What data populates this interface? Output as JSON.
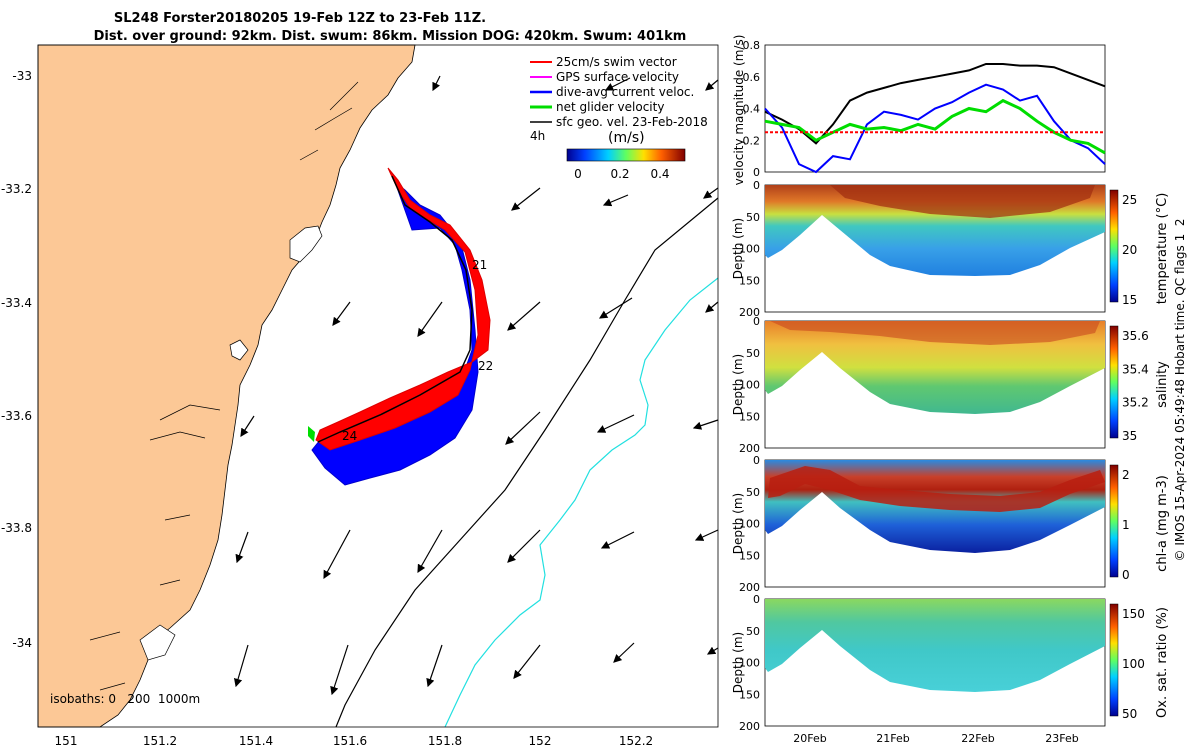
{
  "title_line1": "SL248 Forster20180205 19-Feb 12Z to 23-Feb 11Z.",
  "title_line2": "Dist. over ground: 92km. Dist. swum: 86km. Mission DOG: 420km. Swum: 401km",
  "side_note": "© IMOS 15-Apr-2024 05:49:48 Hobart time. QC flags 1  2",
  "map": {
    "legend": [
      {
        "label": "25cm/s swim vector",
        "color": "#ff0000"
      },
      {
        "label": "GPS surface velocity",
        "color": "#ff00ff"
      },
      {
        "label": "dive-avg current veloc.",
        "color": "#0000ff"
      },
      {
        "label": "net glider velocity",
        "color": "#00dd00"
      },
      {
        "label": "sfc geo. vel. 23-Feb-2018",
        "color": "#000000"
      }
    ],
    "duration_label": "4h",
    "colorbar_title": "(m/s)",
    "colorbar_ticks": [
      "0",
      "0.2",
      "0.4"
    ],
    "isobaths_label": "isobaths: 0   200  1000m",
    "day_labels": [
      "21",
      "22",
      "24"
    ]
  },
  "chart_data": [
    {
      "type": "scatter",
      "title": "",
      "xlabel": "",
      "ylabel": "",
      "xlim": [
        150.95,
        152.38
      ],
      "ylim": [
        -34.13,
        -32.9
      ],
      "x_ticks": [
        "151",
        "151.2",
        "151.4",
        "151.6",
        "151.8",
        "152",
        "152.2"
      ],
      "y_ticks": [
        "-33",
        "-33.2",
        "-33.4",
        "-33.6",
        "-33.8",
        "-34"
      ],
      "glider_track": [
        [
          151.7,
          -33.19
        ],
        [
          151.74,
          -33.26
        ],
        [
          151.78,
          -33.3
        ],
        [
          151.84,
          -33.37
        ],
        [
          151.87,
          -33.44
        ],
        [
          151.85,
          -33.52
        ],
        [
          151.78,
          -33.58
        ],
        [
          151.68,
          -33.63
        ],
        [
          151.58,
          -33.66
        ],
        [
          151.53,
          -33.63
        ]
      ]
    },
    {
      "type": "line",
      "ylabel": "velocity magnitude (m/s)",
      "ylim": [
        0,
        0.8
      ],
      "yticks": [
        "0",
        "0.2",
        "0.4",
        "0.6",
        "0.8"
      ],
      "x": [
        19.5,
        19.7,
        19.9,
        20.1,
        20.3,
        20.5,
        20.7,
        20.9,
        21.1,
        21.3,
        21.5,
        21.7,
        21.9,
        22.1,
        22.3,
        22.5,
        22.7,
        22.9,
        23.1,
        23.3,
        23.5
      ],
      "series": [
        {
          "color": "#000000",
          "values": [
            0.38,
            0.33,
            0.27,
            0.18,
            0.3,
            0.45,
            0.5,
            0.53,
            0.56,
            0.58,
            0.6,
            0.62,
            0.64,
            0.68,
            0.68,
            0.67,
            0.67,
            0.66,
            0.62,
            0.58,
            0.54
          ]
        },
        {
          "color": "#0000ff",
          "values": [
            0.4,
            0.28,
            0.05,
            0.0,
            0.1,
            0.08,
            0.3,
            0.38,
            0.36,
            0.33,
            0.4,
            0.44,
            0.5,
            0.55,
            0.52,
            0.45,
            0.48,
            0.32,
            0.2,
            0.15,
            0.05
          ]
        },
        {
          "color": "#00dd00",
          "values": [
            0.32,
            0.3,
            0.28,
            0.2,
            0.25,
            0.3,
            0.27,
            0.28,
            0.26,
            0.3,
            0.27,
            0.35,
            0.4,
            0.38,
            0.45,
            0.4,
            0.32,
            0.25,
            0.2,
            0.18,
            0.12
          ]
        },
        {
          "color": "#ff0000",
          "values": [
            0.25,
            0.25,
            0.25,
            0.25,
            0.25,
            0.25,
            0.25,
            0.25,
            0.25,
            0.25,
            0.25,
            0.25,
            0.25,
            0.25,
            0.25,
            0.25,
            0.25,
            0.25,
            0.25,
            0.25,
            0.25
          ]
        }
      ]
    },
    {
      "type": "heatmap",
      "ylabel": "Depth (m)",
      "ylim": [
        0,
        200
      ],
      "yticks": [
        "0",
        "50",
        "100",
        "150",
        "200"
      ],
      "colorbar_label": "temperature (°C)",
      "colorbar_ticks": [
        "25",
        "20",
        "15"
      ],
      "colormap": [
        "#0a1aa0",
        "#1e78e6",
        "#38c8c8",
        "#9ae06a",
        "#f0e040",
        "#e07820",
        "#9a2410"
      ]
    },
    {
      "type": "heatmap",
      "ylabel": "Depth (m)",
      "ylim": [
        0,
        200
      ],
      "yticks": [
        "0",
        "50",
        "100",
        "150",
        "200"
      ],
      "colorbar_label": "salinity",
      "colorbar_ticks": [
        "35.6",
        "35.4",
        "35.2",
        "35"
      ],
      "colormap": [
        "#1a2ab0",
        "#2a8ae0",
        "#40c8a0",
        "#a0d840",
        "#f0d030",
        "#e88020",
        "#b03018"
      ]
    },
    {
      "type": "heatmap",
      "ylabel": "Depth (m)",
      "ylim": [
        0,
        200
      ],
      "yticks": [
        "0",
        "50",
        "100",
        "150",
        "200"
      ],
      "colorbar_label": "chl-a (mg m-3)",
      "colorbar_ticks": [
        "2",
        "1",
        "0"
      ],
      "colormap": [
        "#0a1a9a",
        "#1e6ad8",
        "#36b8c8",
        "#8ad86a",
        "#f0d040",
        "#e06a20",
        "#a01010"
      ]
    },
    {
      "type": "heatmap",
      "ylabel": "Depth (m)",
      "ylim": [
        0,
        200
      ],
      "yticks": [
        "0",
        "50",
        "100",
        "150",
        "200"
      ],
      "colorbar_label": "Ox. sat. ratio (%)",
      "colorbar_ticks": [
        "150",
        "100",
        "50"
      ],
      "colormap": [
        "#1a2aa0",
        "#2a8ad8",
        "#40c8b8",
        "#9ad860",
        "#f0d040",
        "#e07a20",
        "#a02a10"
      ]
    }
  ],
  "time_axis": {
    "ticks": [
      "20Feb",
      "21Feb",
      "22Feb",
      "23Feb"
    ]
  }
}
